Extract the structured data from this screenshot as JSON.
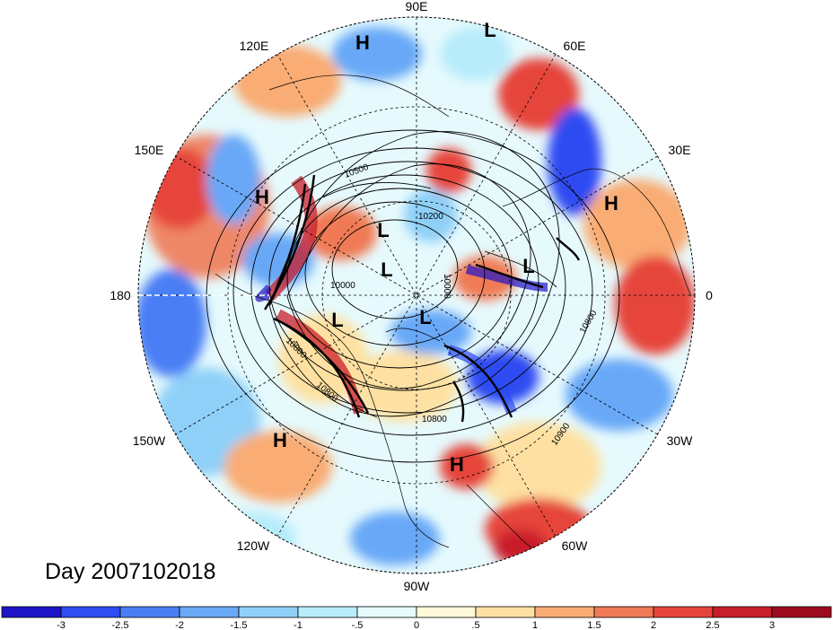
{
  "title": "Day 2007102018",
  "projection": "north-polar-stereographic",
  "longitude_labels": [
    "90E",
    "60E",
    "30E",
    "0",
    "30W",
    "60W",
    "90W",
    "120W",
    "150W",
    "180",
    "150E",
    "120E"
  ],
  "pressure_centers": [
    "H",
    "L",
    "H",
    "L",
    "L",
    "H",
    "L",
    "L",
    "L",
    "H",
    "H"
  ],
  "contour_labels": [
    "10500",
    "10200",
    "10000",
    "10000",
    "10800",
    "10800",
    "10800",
    "10900",
    "10800"
  ],
  "colorbar": {
    "ticks": [
      "-3",
      "-2.5",
      "-2",
      "-1.5",
      "-1",
      "-.5",
      "0",
      ".5",
      "1",
      "1.5",
      "2",
      "2.5",
      "3"
    ],
    "colors": [
      "#1f14c7",
      "#2e4cf2",
      "#4a7ef4",
      "#68a8f7",
      "#8fd0f8",
      "#b7ecfb",
      "#e6fafd",
      "#fff9d9",
      "#fee1a2",
      "#f9ac73",
      "#f07a55",
      "#e6443b",
      "#c81d2a",
      "#9e0a1d"
    ]
  },
  "field_colors": {
    "cold_deep": "#2e4cf2",
    "cold": "#68a8f7",
    "cool": "#b7ecfb",
    "warm": "#f9ac73",
    "hot": "#e6443b"
  }
}
